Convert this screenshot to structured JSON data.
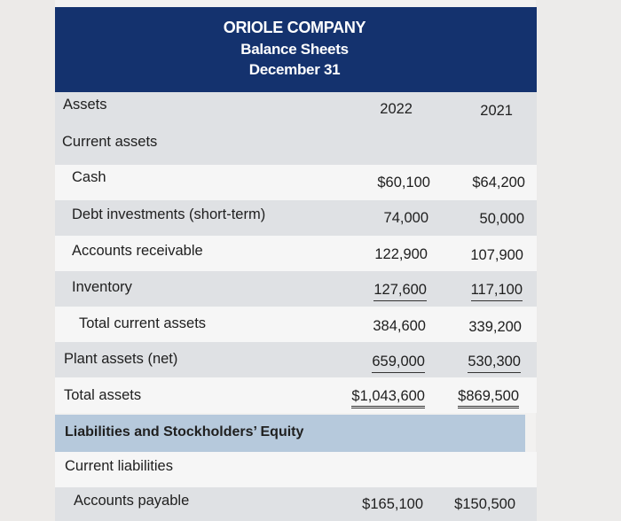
{
  "header": {
    "company": "ORIOLE COMPANY",
    "statement": "Balance Sheets",
    "date": "December 31"
  },
  "columns": {
    "label": "Assets",
    "year1": "2022",
    "year2": "2021"
  },
  "rows": [
    {
      "label": "Current assets",
      "v1": "",
      "v2": ""
    },
    {
      "label": "Cash",
      "v1": "$60,100",
      "v2": "$64,200"
    },
    {
      "label": "Debt investments (short-term)",
      "v1": "74,000",
      "v2": "50,000"
    },
    {
      "label": "Accounts receivable",
      "v1": "122,900",
      "v2": "107,900"
    },
    {
      "label": "Inventory",
      "v1": "127,600",
      "v2": "117,100"
    },
    {
      "label": "Total current assets",
      "v1": "384,600",
      "v2": "339,200"
    },
    {
      "label": "Plant assets (net)",
      "v1": "659,000",
      "v2": "530,300"
    },
    {
      "label": "Total assets",
      "v1": "$1,043,600",
      "v2": "$869,500"
    },
    {
      "label": "Liabilities and Stockholders’ Equity",
      "v1": "",
      "v2": ""
    },
    {
      "label": "Current liabilities",
      "v1": "",
      "v2": ""
    },
    {
      "label": "Accounts payable",
      "v1": "$165,100",
      "v2": "$150,500"
    }
  ]
}
